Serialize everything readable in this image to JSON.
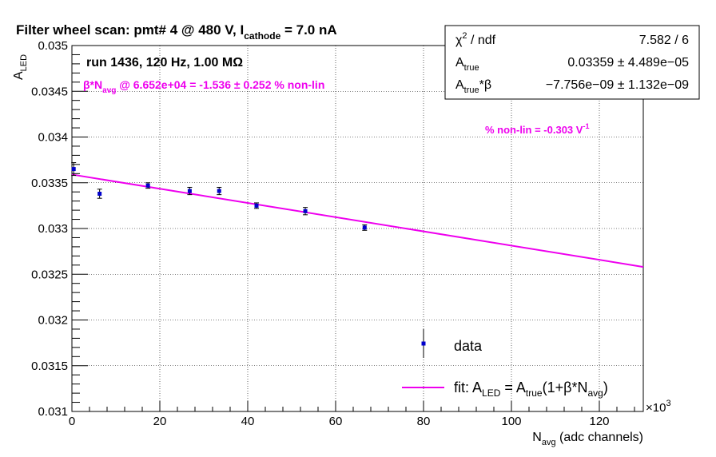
{
  "chart_data": {
    "type": "scatter",
    "title": {
      "main": "Filter wheel scan: pmt#   4 @   480 V, I",
      "sub": "cathode",
      "tail": " = 7.0 nA"
    },
    "ylabel": {
      "main": "A",
      "sub": "LED"
    },
    "xlabel": {
      "main": "N",
      "sub": "avg",
      "tail": " (adc channels)"
    },
    "x_multiplier": {
      "base": "×10",
      "exp": "3"
    },
    "xlim": [
      0,
      130000
    ],
    "ylim": [
      0.031,
      0.035
    ],
    "grid": true,
    "x_ticks": [
      0,
      20000,
      40000,
      60000,
      80000,
      100000,
      120000
    ],
    "x_tick_labels": [
      "0",
      "20",
      "40",
      "60",
      "80",
      "100",
      "120"
    ],
    "y_ticks": [
      0.031,
      0.0315,
      0.032,
      0.0325,
      0.033,
      0.0335,
      0.034,
      0.0345,
      0.035
    ],
    "y_tick_labels": [
      "0.031",
      "0.0315",
      "0.032",
      "0.0325",
      "0.033",
      "0.0335",
      "0.034",
      "0.0345",
      "0.035"
    ],
    "series": [
      {
        "name": "data",
        "color": "#0000cc",
        "points": [
          {
            "x": 400,
            "y": 0.03365,
            "err": 7e-05
          },
          {
            "x": 6300,
            "y": 0.03338,
            "err": 5e-05
          },
          {
            "x": 17300,
            "y": 0.03347,
            "err": 3e-05
          },
          {
            "x": 26800,
            "y": 0.03341,
            "err": 4e-05
          },
          {
            "x": 33500,
            "y": 0.03341,
            "err": 4e-05
          },
          {
            "x": 42000,
            "y": 0.03325,
            "err": 3e-05
          },
          {
            "x": 53100,
            "y": 0.03319,
            "err": 4e-05
          },
          {
            "x": 66600,
            "y": 0.03301,
            "err": 3e-05
          }
        ]
      },
      {
        "name": "fit",
        "color": "#ee00ee",
        "type": "line",
        "x": [
          0,
          130000
        ],
        "y": [
          0.03359,
          0.03258
        ]
      }
    ],
    "legend": {
      "placement": "bottom-right",
      "data_label": "data",
      "fit_label": {
        "p1": "fit: A",
        "p1s": "LED",
        "p2": " = A",
        "p2s": "true",
        "p3": "(1+β*N",
        "p3s": "avg",
        "p4": ")"
      }
    },
    "annotations": {
      "run": "run 1436, 120 Hz, 1.00 MΩ",
      "beta_line": {
        "p1": "β*N",
        "p1s": "avg",
        "p2": " @ 6.652e+04 = -1.536  ± 0.252 % non-lin"
      },
      "nonlin": {
        "p1": "% non-lin = -0.303 V",
        "sup": "-1"
      }
    },
    "stats_box": {
      "placement": "top-right",
      "rows": [
        {
          "label": "χ",
          "label_sup": "2",
          "label_tail": " / ndf",
          "value": "7.582 / 6"
        },
        {
          "label": "A",
          "label_sub": "true",
          "label_tail": "",
          "value": "0.03359 ± 4.489e−05"
        },
        {
          "label": "A",
          "label_sub": "true",
          "label_tail": "*β",
          "value": "−7.756e−09 ± 1.132e−09"
        }
      ]
    }
  }
}
